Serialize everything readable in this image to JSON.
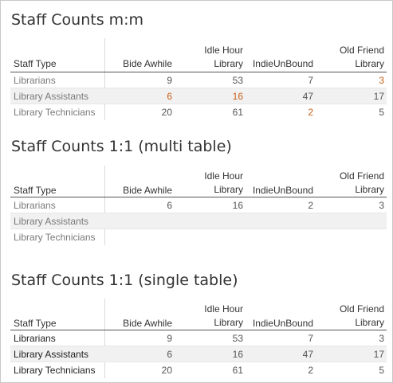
{
  "columns": {
    "staff_type": "Staff Type",
    "bide_awhile": "Bide Awhile",
    "idle_hour_line1": "Idle Hour",
    "idle_hour_line2": "Library",
    "indieunbound": "IndieUnBound",
    "old_friend_line1": "Old Friend",
    "old_friend_line2": "Library"
  },
  "tables": [
    {
      "title": "Staff Counts m:m",
      "rows": [
        {
          "label": "Librarians",
          "values": [
            "9",
            "53",
            "7",
            "3"
          ],
          "highlight": [
            false,
            false,
            false,
            true
          ]
        },
        {
          "label": "Library Assistants",
          "values": [
            "6",
            "16",
            "47",
            "17"
          ],
          "highlight": [
            true,
            true,
            false,
            false
          ]
        },
        {
          "label": "Library Technicians",
          "values": [
            "20",
            "61",
            "2",
            "5"
          ],
          "highlight": [
            false,
            false,
            true,
            false
          ]
        }
      ]
    },
    {
      "title": "Staff Counts 1:1 (multi table)",
      "rows": [
        {
          "label": "Librarians",
          "values": [
            "6",
            "16",
            "2",
            "3"
          ],
          "highlight": [
            false,
            false,
            false,
            false
          ]
        },
        {
          "label": "Library Assistants",
          "values": [
            "",
            "",
            "",
            ""
          ],
          "highlight": [
            false,
            false,
            false,
            false
          ]
        },
        {
          "label": "Library Technicians",
          "values": [
            "",
            "",
            "",
            ""
          ],
          "highlight": [
            false,
            false,
            false,
            false
          ]
        }
      ]
    },
    {
      "title": "Staff Counts 1:1 (single table)",
      "rows": [
        {
          "label": "Librarians",
          "values": [
            "9",
            "53",
            "7",
            "3"
          ],
          "highlight": [
            false,
            false,
            false,
            false
          ]
        },
        {
          "label": "Library Assistants",
          "values": [
            "6",
            "16",
            "47",
            "17"
          ],
          "highlight": [
            false,
            false,
            false,
            false
          ]
        },
        {
          "label": "Library Technicians",
          "values": [
            "20",
            "61",
            "2",
            "5"
          ],
          "highlight": [
            false,
            false,
            false,
            false
          ]
        }
      ]
    }
  ],
  "colors": {
    "highlight": "#c8601a",
    "shade": "#f1f1f1"
  }
}
